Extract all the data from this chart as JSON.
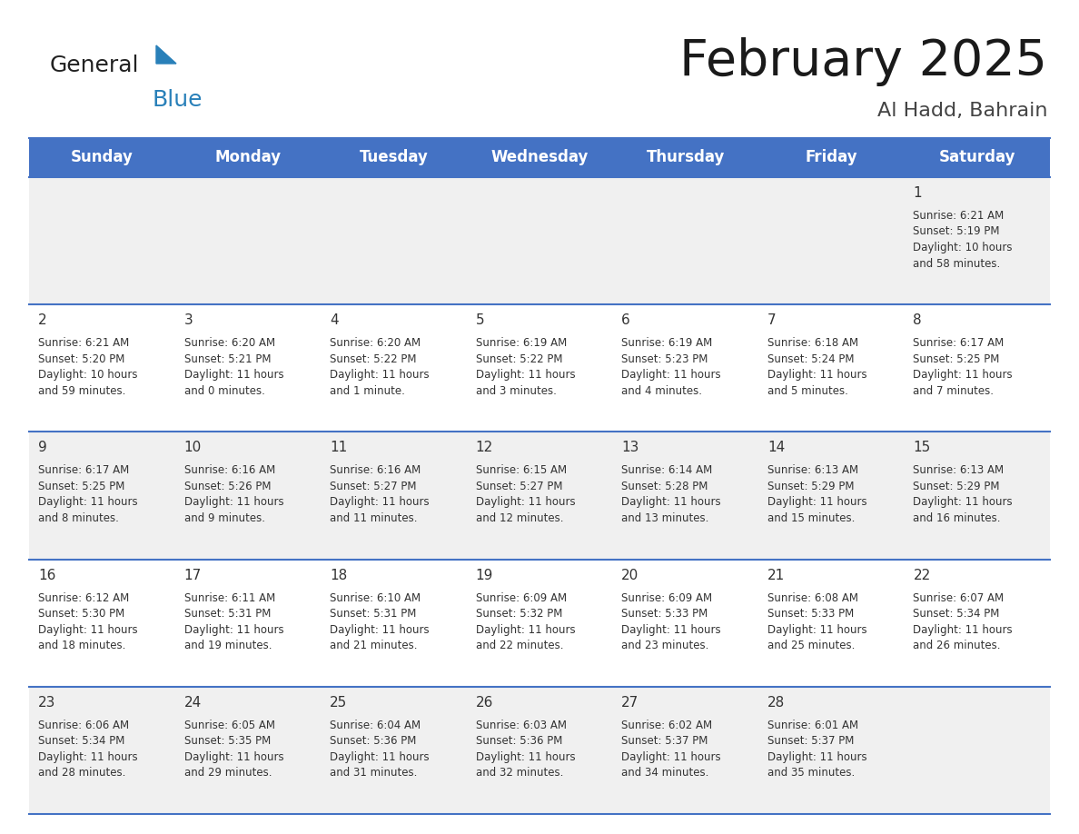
{
  "title": "February 2025",
  "subtitle": "Al Hadd, Bahrain",
  "header_color": "#4472C4",
  "header_text_color": "#FFFFFF",
  "days_of_week": [
    "Sunday",
    "Monday",
    "Tuesday",
    "Wednesday",
    "Thursday",
    "Friday",
    "Saturday"
  ],
  "bg_color": "#FFFFFF",
  "row_alt_color": "#F0F0F0",
  "cell_border_color": "#4472C4",
  "day_number_color": "#333333",
  "text_color": "#333333",
  "calendar_data": [
    [
      {
        "day": null,
        "info": ""
      },
      {
        "day": null,
        "info": ""
      },
      {
        "day": null,
        "info": ""
      },
      {
        "day": null,
        "info": ""
      },
      {
        "day": null,
        "info": ""
      },
      {
        "day": null,
        "info": ""
      },
      {
        "day": 1,
        "info": "Sunrise: 6:21 AM\nSunset: 5:19 PM\nDaylight: 10 hours\nand 58 minutes."
      }
    ],
    [
      {
        "day": 2,
        "info": "Sunrise: 6:21 AM\nSunset: 5:20 PM\nDaylight: 10 hours\nand 59 minutes."
      },
      {
        "day": 3,
        "info": "Sunrise: 6:20 AM\nSunset: 5:21 PM\nDaylight: 11 hours\nand 0 minutes."
      },
      {
        "day": 4,
        "info": "Sunrise: 6:20 AM\nSunset: 5:22 PM\nDaylight: 11 hours\nand 1 minute."
      },
      {
        "day": 5,
        "info": "Sunrise: 6:19 AM\nSunset: 5:22 PM\nDaylight: 11 hours\nand 3 minutes."
      },
      {
        "day": 6,
        "info": "Sunrise: 6:19 AM\nSunset: 5:23 PM\nDaylight: 11 hours\nand 4 minutes."
      },
      {
        "day": 7,
        "info": "Sunrise: 6:18 AM\nSunset: 5:24 PM\nDaylight: 11 hours\nand 5 minutes."
      },
      {
        "day": 8,
        "info": "Sunrise: 6:17 AM\nSunset: 5:25 PM\nDaylight: 11 hours\nand 7 minutes."
      }
    ],
    [
      {
        "day": 9,
        "info": "Sunrise: 6:17 AM\nSunset: 5:25 PM\nDaylight: 11 hours\nand 8 minutes."
      },
      {
        "day": 10,
        "info": "Sunrise: 6:16 AM\nSunset: 5:26 PM\nDaylight: 11 hours\nand 9 minutes."
      },
      {
        "day": 11,
        "info": "Sunrise: 6:16 AM\nSunset: 5:27 PM\nDaylight: 11 hours\nand 11 minutes."
      },
      {
        "day": 12,
        "info": "Sunrise: 6:15 AM\nSunset: 5:27 PM\nDaylight: 11 hours\nand 12 minutes."
      },
      {
        "day": 13,
        "info": "Sunrise: 6:14 AM\nSunset: 5:28 PM\nDaylight: 11 hours\nand 13 minutes."
      },
      {
        "day": 14,
        "info": "Sunrise: 6:13 AM\nSunset: 5:29 PM\nDaylight: 11 hours\nand 15 minutes."
      },
      {
        "day": 15,
        "info": "Sunrise: 6:13 AM\nSunset: 5:29 PM\nDaylight: 11 hours\nand 16 minutes."
      }
    ],
    [
      {
        "day": 16,
        "info": "Sunrise: 6:12 AM\nSunset: 5:30 PM\nDaylight: 11 hours\nand 18 minutes."
      },
      {
        "day": 17,
        "info": "Sunrise: 6:11 AM\nSunset: 5:31 PM\nDaylight: 11 hours\nand 19 minutes."
      },
      {
        "day": 18,
        "info": "Sunrise: 6:10 AM\nSunset: 5:31 PM\nDaylight: 11 hours\nand 21 minutes."
      },
      {
        "day": 19,
        "info": "Sunrise: 6:09 AM\nSunset: 5:32 PM\nDaylight: 11 hours\nand 22 minutes."
      },
      {
        "day": 20,
        "info": "Sunrise: 6:09 AM\nSunset: 5:33 PM\nDaylight: 11 hours\nand 23 minutes."
      },
      {
        "day": 21,
        "info": "Sunrise: 6:08 AM\nSunset: 5:33 PM\nDaylight: 11 hours\nand 25 minutes."
      },
      {
        "day": 22,
        "info": "Sunrise: 6:07 AM\nSunset: 5:34 PM\nDaylight: 11 hours\nand 26 minutes."
      }
    ],
    [
      {
        "day": 23,
        "info": "Sunrise: 6:06 AM\nSunset: 5:34 PM\nDaylight: 11 hours\nand 28 minutes."
      },
      {
        "day": 24,
        "info": "Sunrise: 6:05 AM\nSunset: 5:35 PM\nDaylight: 11 hours\nand 29 minutes."
      },
      {
        "day": 25,
        "info": "Sunrise: 6:04 AM\nSunset: 5:36 PM\nDaylight: 11 hours\nand 31 minutes."
      },
      {
        "day": 26,
        "info": "Sunrise: 6:03 AM\nSunset: 5:36 PM\nDaylight: 11 hours\nand 32 minutes."
      },
      {
        "day": 27,
        "info": "Sunrise: 6:02 AM\nSunset: 5:37 PM\nDaylight: 11 hours\nand 34 minutes."
      },
      {
        "day": 28,
        "info": "Sunrise: 6:01 AM\nSunset: 5:37 PM\nDaylight: 11 hours\nand 35 minutes."
      },
      {
        "day": null,
        "info": ""
      }
    ]
  ],
  "logo_color_general": "#222222",
  "logo_color_blue": "#2980B9",
  "logo_triangle_color": "#2980B9",
  "title_fontsize": 40,
  "subtitle_fontsize": 16,
  "header_fontsize": 12,
  "day_num_fontsize": 11,
  "info_fontsize": 8.5
}
